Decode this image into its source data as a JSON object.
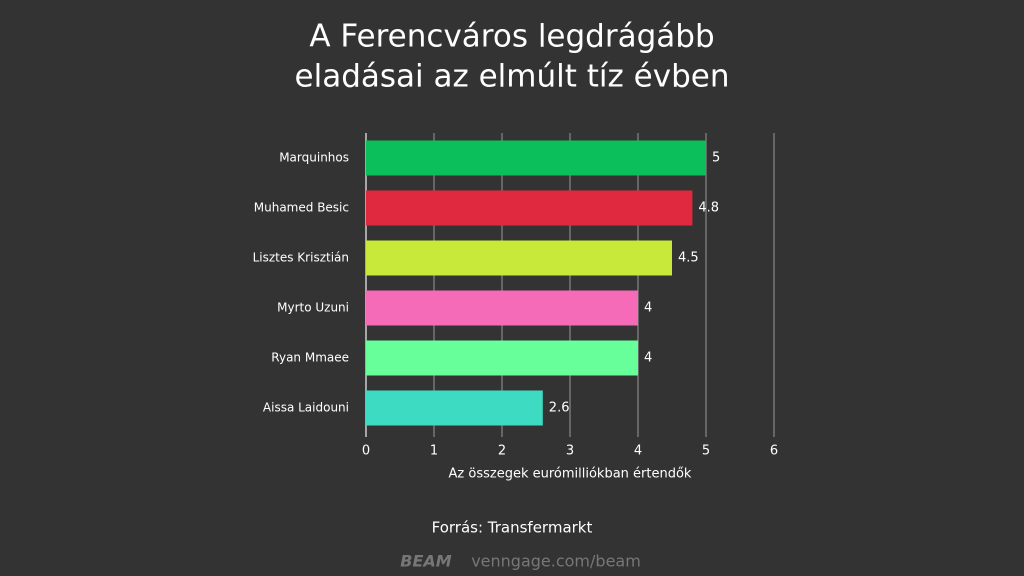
{
  "chart_data": {
    "type": "bar",
    "orientation": "horizontal",
    "title": [
      "A Ferencváros legdrágább",
      "eladásai az elmúlt tíz évben"
    ],
    "categories": [
      "Marquinhos",
      "Muhamed Besic",
      "Lisztes Krisztián",
      "Myrto Uzuni",
      "Ryan Mmaee",
      "Aissa Laidouni"
    ],
    "values": [
      5,
      4.8,
      4.5,
      4,
      4,
      2.6
    ],
    "colors": [
      "#0bbf5a",
      "#e0283e",
      "#c8e83a",
      "#f56bb7",
      "#66ff99",
      "#3ddbc1"
    ],
    "xlim": [
      0,
      6
    ],
    "xticks": [
      0,
      1,
      2,
      3,
      4,
      5,
      6
    ],
    "grid": true,
    "xlabel": "Az összegek eurómilliókban értendők",
    "source": "Forrás: Transfermarkt"
  },
  "footer": {
    "logo": "BEAM",
    "url": "venngage.com/beam"
  }
}
